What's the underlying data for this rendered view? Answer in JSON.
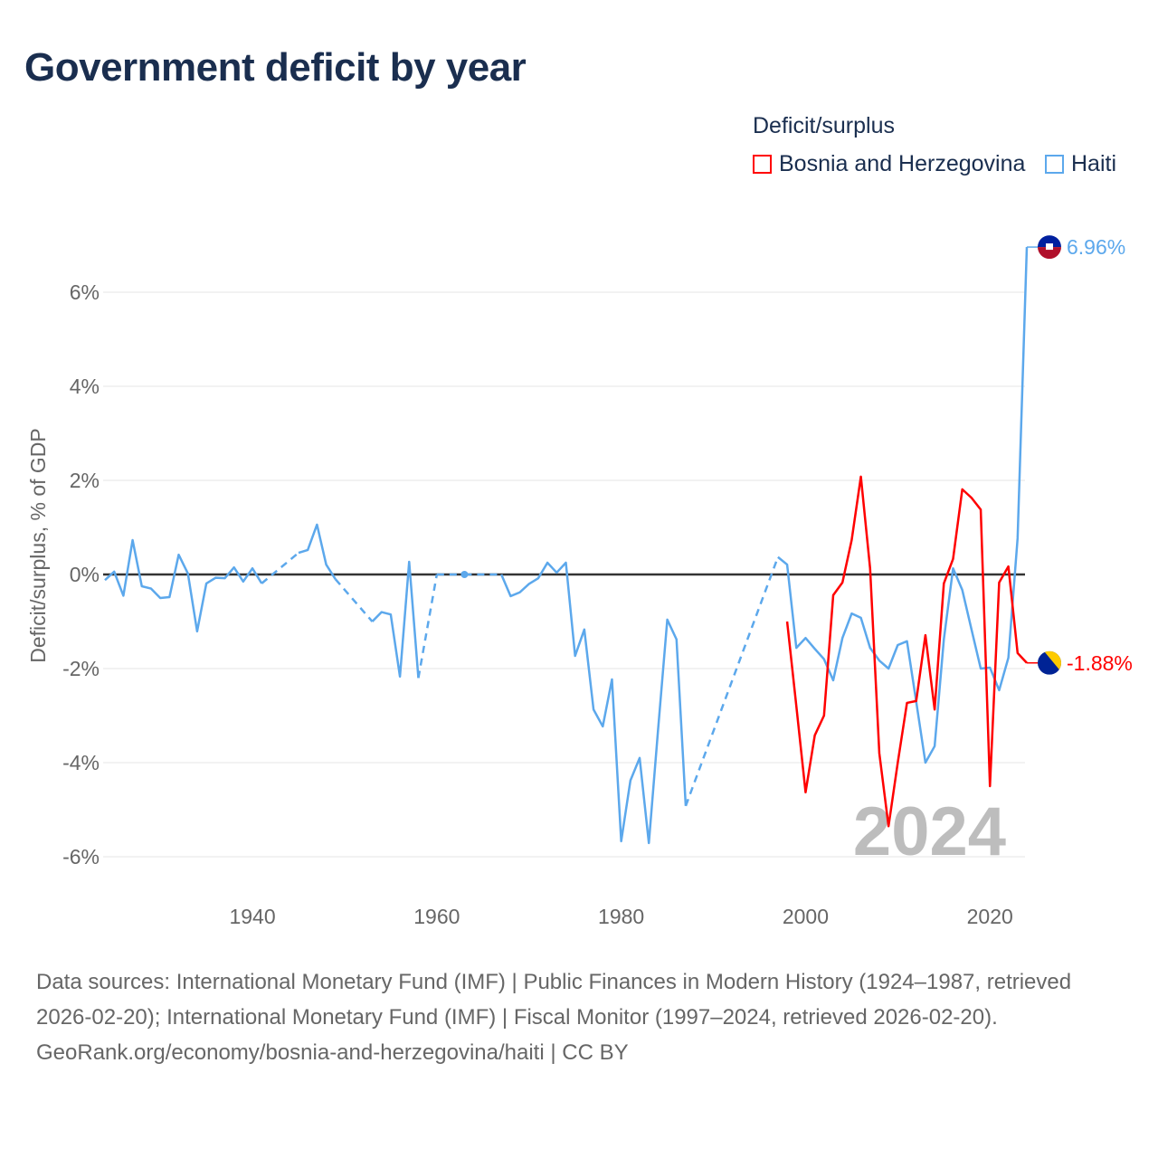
{
  "title": "Government deficit by year",
  "legend": {
    "title": "Deficit/surplus",
    "items": [
      {
        "label": "Bosnia and Herzegovina",
        "color": "#ff0000"
      },
      {
        "label": "Haiti",
        "color": "#5ca8ec"
      }
    ]
  },
  "footer": {
    "sources": "Data sources: International Monetary Fund (IMF) | Public Finances in Modern History (1924–1987, retrieved 2026-02-20); International Monetary Fund (IMF) | Fiscal Monitor (1997–2024, retrieved 2026-02-20).",
    "credit": "GeoRank.org/economy/bosnia-and-herzegovina/haiti | CC BY"
  },
  "chart_data": {
    "type": "line",
    "title": "Government deficit by year",
    "ylabel": "Deficit/surplus, % of GDP",
    "xlabel": "",
    "year_label": "2024",
    "xlim": [
      1924,
      2024
    ],
    "ylim": [
      -7,
      7.5
    ],
    "xticks": [
      1940,
      1960,
      1980,
      2000,
      2020
    ],
    "yticks": [
      -6,
      -4,
      -2,
      0,
      2,
      4,
      6
    ],
    "ytick_labels": [
      "-6%",
      "-4%",
      "-2%",
      "0%",
      "2%",
      "4%",
      "6%"
    ],
    "grid": true,
    "series": [
      {
        "name": "Haiti",
        "color": "#5ca8ec",
        "end_label": "6.96%",
        "points": [
          [
            1924,
            -0.12
          ],
          [
            1925,
            0.06
          ],
          [
            1926,
            -0.45
          ],
          [
            1927,
            0.73
          ],
          [
            1928,
            -0.25
          ],
          [
            1929,
            -0.3
          ],
          [
            1930,
            -0.5
          ],
          [
            1931,
            -0.48
          ],
          [
            1932,
            0.42
          ],
          [
            1933,
            0.02
          ],
          [
            1934,
            -1.21
          ],
          [
            1935,
            -0.19
          ],
          [
            1936,
            -0.07
          ],
          [
            1937,
            -0.08
          ],
          [
            1938,
            0.15
          ],
          [
            1939,
            -0.15
          ],
          [
            1940,
            0.13
          ],
          [
            1941,
            -0.19
          ],
          [
            1945,
            0.46
          ],
          [
            1946,
            0.52
          ],
          [
            1947,
            1.06
          ],
          [
            1948,
            0.21
          ],
          [
            1949,
            -0.1
          ],
          [
            1953,
            -1.0
          ],
          [
            1954,
            -0.8
          ],
          [
            1955,
            -0.85
          ],
          [
            1956,
            -2.17
          ],
          [
            1957,
            0.27
          ],
          [
            1958,
            -2.2
          ],
          [
            1960,
            0.0
          ],
          [
            1963,
            0.0
          ],
          [
            1967,
            0.0
          ],
          [
            1968,
            -0.46
          ],
          [
            1969,
            -0.38
          ],
          [
            1970,
            -0.2
          ],
          [
            1971,
            -0.08
          ],
          [
            1972,
            0.25
          ],
          [
            1973,
            0.04
          ],
          [
            1974,
            0.25
          ],
          [
            1975,
            -1.73
          ],
          [
            1976,
            -1.17
          ],
          [
            1977,
            -2.87
          ],
          [
            1978,
            -3.23
          ],
          [
            1979,
            -2.23
          ],
          [
            1980,
            -5.67
          ],
          [
            1981,
            -4.38
          ],
          [
            1982,
            -3.9
          ],
          [
            1983,
            -5.71
          ],
          [
            1984,
            -3.3
          ],
          [
            1985,
            -0.96
          ],
          [
            1986,
            -1.38
          ],
          [
            1987,
            -4.92
          ],
          [
            1997,
            0.37
          ],
          [
            1998,
            0.21
          ],
          [
            1999,
            -1.56
          ],
          [
            2000,
            -1.35
          ],
          [
            2001,
            -1.58
          ],
          [
            2002,
            -1.8
          ],
          [
            2003,
            -2.25
          ],
          [
            2004,
            -1.35
          ],
          [
            2005,
            -0.83
          ],
          [
            2006,
            -0.92
          ],
          [
            2007,
            -1.56
          ],
          [
            2008,
            -1.83
          ],
          [
            2009,
            -2.0
          ],
          [
            2010,
            -1.5
          ],
          [
            2011,
            -1.42
          ],
          [
            2012,
            -2.7
          ],
          [
            2013,
            -4.0
          ],
          [
            2014,
            -3.65
          ],
          [
            2015,
            -1.38
          ],
          [
            2016,
            0.13
          ],
          [
            2017,
            -0.33
          ],
          [
            2018,
            -1.17
          ],
          [
            2019,
            -2.0
          ],
          [
            2020,
            -1.98
          ],
          [
            2021,
            -2.46
          ],
          [
            2022,
            -1.77
          ],
          [
            2023,
            0.77
          ],
          [
            2024,
            6.96
          ]
        ]
      },
      {
        "name": "Bosnia and Herzegovina",
        "color": "#ff0000",
        "end_label": "-1.88%",
        "points": [
          [
            1998,
            -1.0
          ],
          [
            1999,
            -2.8
          ],
          [
            2000,
            -4.63
          ],
          [
            2001,
            -3.42
          ],
          [
            2002,
            -3.0
          ],
          [
            2003,
            -0.44
          ],
          [
            2004,
            -0.17
          ],
          [
            2005,
            0.73
          ],
          [
            2006,
            2.08
          ],
          [
            2007,
            0.13
          ],
          [
            2008,
            -3.8
          ],
          [
            2009,
            -5.35
          ],
          [
            2010,
            -4.0
          ],
          [
            2011,
            -2.73
          ],
          [
            2012,
            -2.69
          ],
          [
            2013,
            -1.29
          ],
          [
            2014,
            -2.87
          ],
          [
            2015,
            -0.19
          ],
          [
            2016,
            0.33
          ],
          [
            2017,
            1.81
          ],
          [
            2018,
            1.63
          ],
          [
            2019,
            1.38
          ],
          [
            2020,
            -4.5
          ],
          [
            2021,
            -0.17
          ],
          [
            2022,
            0.17
          ],
          [
            2023,
            -1.67
          ],
          [
            2024,
            -1.88
          ]
        ]
      }
    ]
  }
}
